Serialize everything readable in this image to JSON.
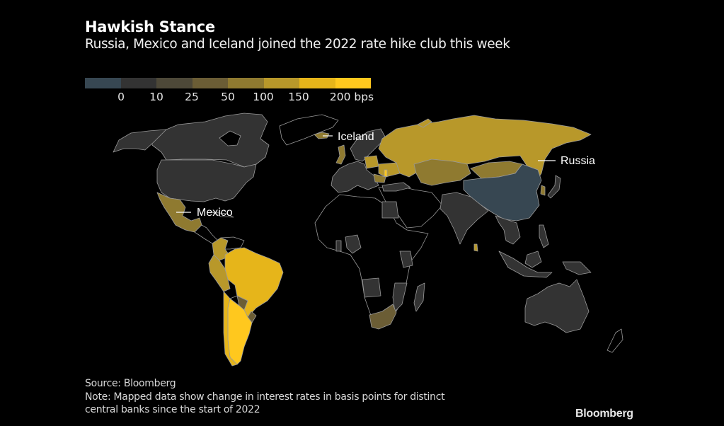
{
  "header": {
    "title": "Hawkish Stance",
    "subtitle": "Russia, Mexico and Iceland joined the 2022 rate hike club this week"
  },
  "legend": {
    "bins": [
      {
        "label": "",
        "color": "#374752"
      },
      {
        "label": "0",
        "color": "#333333"
      },
      {
        "label": "10",
        "color": "#4d4838"
      },
      {
        "label": "25",
        "color": "#6b5d35"
      },
      {
        "label": "50",
        "color": "#8f7a30"
      },
      {
        "label": "100",
        "color": "#b8982a"
      },
      {
        "label": "150",
        "color": "#e6b51a"
      },
      {
        "label": "200 bps",
        "color": "#ffc81e"
      }
    ]
  },
  "map": {
    "callouts": [
      {
        "country": "Iceland",
        "label": "Iceland"
      },
      {
        "country": "Mexico",
        "label": "Mexico"
      },
      {
        "country": "Russia",
        "label": "Russia"
      }
    ],
    "border_color": "#9a9a9a",
    "no_data_color": "#000000",
    "country_categories": {
      "China": "below 0",
      "United States": "0 to 10",
      "Canada": "0 to 10",
      "Europe (euro area)": "0 to 10",
      "India": "0 to 10",
      "Australia": "0 to 10",
      "Japan": "0 to 10",
      "South Africa": "25 to 50",
      "Paraguay": "25 to 50",
      "Uruguay": "25 to 50",
      "Kazakhstan": "50 to 100",
      "Mongolia": "50 to 100",
      "Mexico": "50 to 100",
      "Iceland": "50 to 100",
      "United Kingdom": "50 to 100",
      "Russia": "100 to 150",
      "Poland": "100 to 150",
      "Ukraine": "100 to 150",
      "Colombia": "100 to 150",
      "Peru": "100 to 150",
      "Brazil": "150 to 200",
      "Argentina": "200+",
      "Chile": "200+"
    }
  },
  "footer": {
    "source": "Source: Bloomberg",
    "note_line1": "Note: Mapped data show change in interest rates in basis points for distinct",
    "note_line2": "central banks since the start of 2022",
    "brand": "Bloomberg"
  }
}
